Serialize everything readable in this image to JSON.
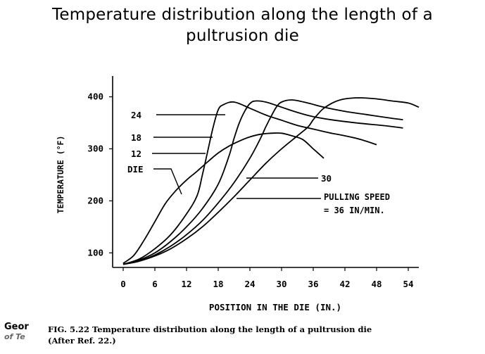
{
  "slide_title": {
    "line1": "Temperature distribution along the length of a",
    "line2": "pultrusion die"
  },
  "chart_data": {
    "type": "line",
    "xlabel": "POSITION IN THE DIE (IN.)",
    "ylabel": "TEMPERATURE (°F)",
    "xlim": [
      -2,
      56
    ],
    "ylim": [
      72,
      440
    ],
    "x_ticks": [
      "0",
      "6",
      "12",
      "18",
      "24",
      "30",
      "36",
      "42",
      "48",
      "54"
    ],
    "x_tick_values": [
      0,
      6,
      12,
      18,
      24,
      30,
      36,
      42,
      48,
      54
    ],
    "y_ticks": [
      "100",
      "200",
      "300",
      "400"
    ],
    "y_tick_values": [
      100,
      200,
      300,
      400
    ],
    "grid": false,
    "legend": "callout labels with leader lines",
    "annotation": {
      "line1": "PULLING SPEED",
      "line2": "= 36 IN/MIN."
    },
    "series": [
      {
        "name": "DIE",
        "points": [
          [
            0,
            80
          ],
          [
            2,
            95
          ],
          [
            4,
            125
          ],
          [
            6,
            160
          ],
          [
            8,
            195
          ],
          [
            10,
            220
          ],
          [
            12,
            240
          ],
          [
            14,
            257
          ],
          [
            16,
            275
          ],
          [
            18,
            292
          ],
          [
            20,
            305
          ],
          [
            22,
            315
          ],
          [
            24,
            323
          ],
          [
            26,
            328
          ],
          [
            28,
            330
          ],
          [
            30,
            330
          ],
          [
            32,
            325
          ],
          [
            34,
            318
          ],
          [
            36,
            300
          ],
          [
            38,
            282
          ]
        ]
      },
      {
        "name": "12",
        "points": [
          [
            0,
            78
          ],
          [
            3,
            88
          ],
          [
            6,
            108
          ],
          [
            9,
            135
          ],
          [
            12,
            175
          ],
          [
            14,
            210
          ],
          [
            15,
            250
          ],
          [
            16,
            295
          ],
          [
            17,
            340
          ],
          [
            18,
            375
          ],
          [
            19,
            385
          ],
          [
            21,
            390
          ],
          [
            24,
            378
          ],
          [
            27,
            365
          ],
          [
            30,
            355
          ],
          [
            33,
            345
          ],
          [
            36,
            338
          ],
          [
            39,
            331
          ],
          [
            42,
            325
          ],
          [
            45,
            318
          ],
          [
            48,
            308
          ]
        ]
      },
      {
        "name": "18",
        "points": [
          [
            0,
            78
          ],
          [
            3,
            86
          ],
          [
            6,
            100
          ],
          [
            9,
            122
          ],
          [
            12,
            150
          ],
          [
            15,
            185
          ],
          [
            18,
            232
          ],
          [
            20,
            285
          ],
          [
            21,
            320
          ],
          [
            22,
            350
          ],
          [
            23,
            372
          ],
          [
            24,
            387
          ],
          [
            25,
            392
          ],
          [
            27,
            390
          ],
          [
            30,
            380
          ],
          [
            33,
            370
          ],
          [
            36,
            362
          ],
          [
            40,
            355
          ],
          [
            45,
            349
          ],
          [
            50,
            344
          ],
          [
            53,
            340
          ]
        ]
      },
      {
        "name": "24",
        "points": [
          [
            0,
            78
          ],
          [
            3,
            84
          ],
          [
            6,
            96
          ],
          [
            9,
            113
          ],
          [
            12,
            135
          ],
          [
            15,
            162
          ],
          [
            18,
            196
          ],
          [
            21,
            235
          ],
          [
            24,
            282
          ],
          [
            26,
            320
          ],
          [
            27,
            342
          ],
          [
            28,
            362
          ],
          [
            29,
            380
          ],
          [
            30,
            390
          ],
          [
            32,
            394
          ],
          [
            35,
            388
          ],
          [
            38,
            380
          ],
          [
            42,
            372
          ],
          [
            46,
            366
          ],
          [
            50,
            360
          ],
          [
            53,
            356
          ]
        ]
      },
      {
        "name": "30",
        "points": [
          [
            0,
            78
          ],
          [
            3,
            84
          ],
          [
            6,
            94
          ],
          [
            9,
            108
          ],
          [
            12,
            127
          ],
          [
            15,
            150
          ],
          [
            18,
            178
          ],
          [
            21,
            208
          ],
          [
            24,
            240
          ],
          [
            27,
            272
          ],
          [
            30,
            300
          ],
          [
            33,
            325
          ],
          [
            35,
            342
          ],
          [
            36,
            356
          ],
          [
            37,
            368
          ],
          [
            38,
            378
          ],
          [
            40,
            390
          ],
          [
            42,
            396
          ],
          [
            45,
            398
          ],
          [
            48,
            396
          ],
          [
            51,
            392
          ],
          [
            54,
            388
          ],
          [
            56,
            380
          ]
        ]
      }
    ]
  },
  "callouts": [
    {
      "label": "24"
    },
    {
      "label": "18"
    },
    {
      "label": "12"
    },
    {
      "label": "DIE"
    },
    {
      "label": "30"
    }
  ],
  "figure_caption": {
    "line1": "FIG. 5.22  Temperature distribution along the length of a pultrusion die",
    "line2": "(After Ref. 22.)"
  },
  "logo": {
    "line1": "Geor",
    "line2": "of Te"
  }
}
